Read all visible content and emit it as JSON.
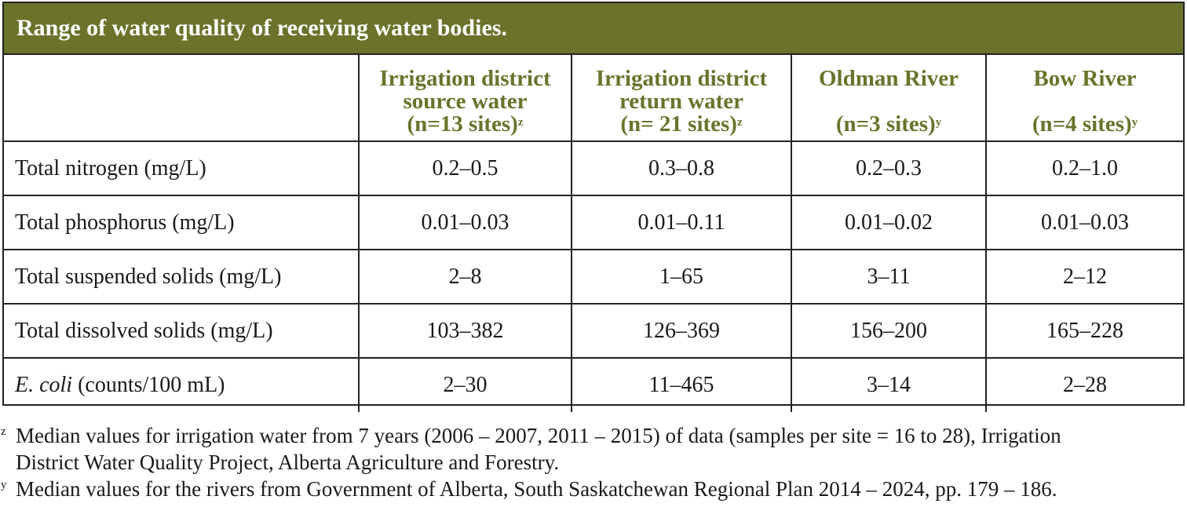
{
  "table": {
    "title": "Range of water quality of receiving water bodies.",
    "columns": [
      {
        "lines": [
          "Irrigation district",
          "source water",
          "(n=13 sites)"
        ],
        "marker": "z"
      },
      {
        "lines": [
          "Irrigation district",
          "return water",
          "(n= 21 sites)"
        ],
        "marker": "z"
      },
      {
        "lines": [
          "Oldman River",
          "",
          "(n=3 sites)"
        ],
        "marker": "y"
      },
      {
        "lines": [
          "Bow River",
          "",
          "(n=4 sites)"
        ],
        "marker": "y"
      }
    ],
    "rows": [
      {
        "label": "Total nitrogen (mg/L)",
        "values": [
          "0.2–0.5",
          "0.3–0.8",
          "0.2–0.3",
          "0.2–1.0"
        ]
      },
      {
        "label": "Total phosphorus (mg/L)",
        "values": [
          "0.01–0.03",
          "0.01–0.11",
          "0.01–0.02",
          "0.01–0.03"
        ]
      },
      {
        "label": "Total suspended solids (mg/L)",
        "values": [
          "2–8",
          "1–65",
          "3–11",
          "2–12"
        ]
      },
      {
        "label": "Total dissolved solids (mg/L)",
        "values": [
          "103–382",
          "126–369",
          "156–200",
          "165–228"
        ]
      },
      {
        "label_italic": "E. coli",
        "label_rest": " (counts/100 mL)",
        "values": [
          "2–30",
          "11–465",
          "3–14",
          "2–28"
        ]
      }
    ]
  },
  "footnotes": [
    {
      "marker": "z",
      "lines": [
        "Median values for irrigation water from 7 years (2006 – 2007, 2011 – 2015) of data (samples per site = 16 to 28), Irrigation",
        "District Water Quality Project, Alberta Agriculture and Forestry."
      ]
    },
    {
      "marker": "y",
      "lines": [
        "Median values for the rivers from Government of Alberta, South Saskatchewan Regional Plan 2014 – 2024, pp. 179 – 186."
      ]
    }
  ]
}
